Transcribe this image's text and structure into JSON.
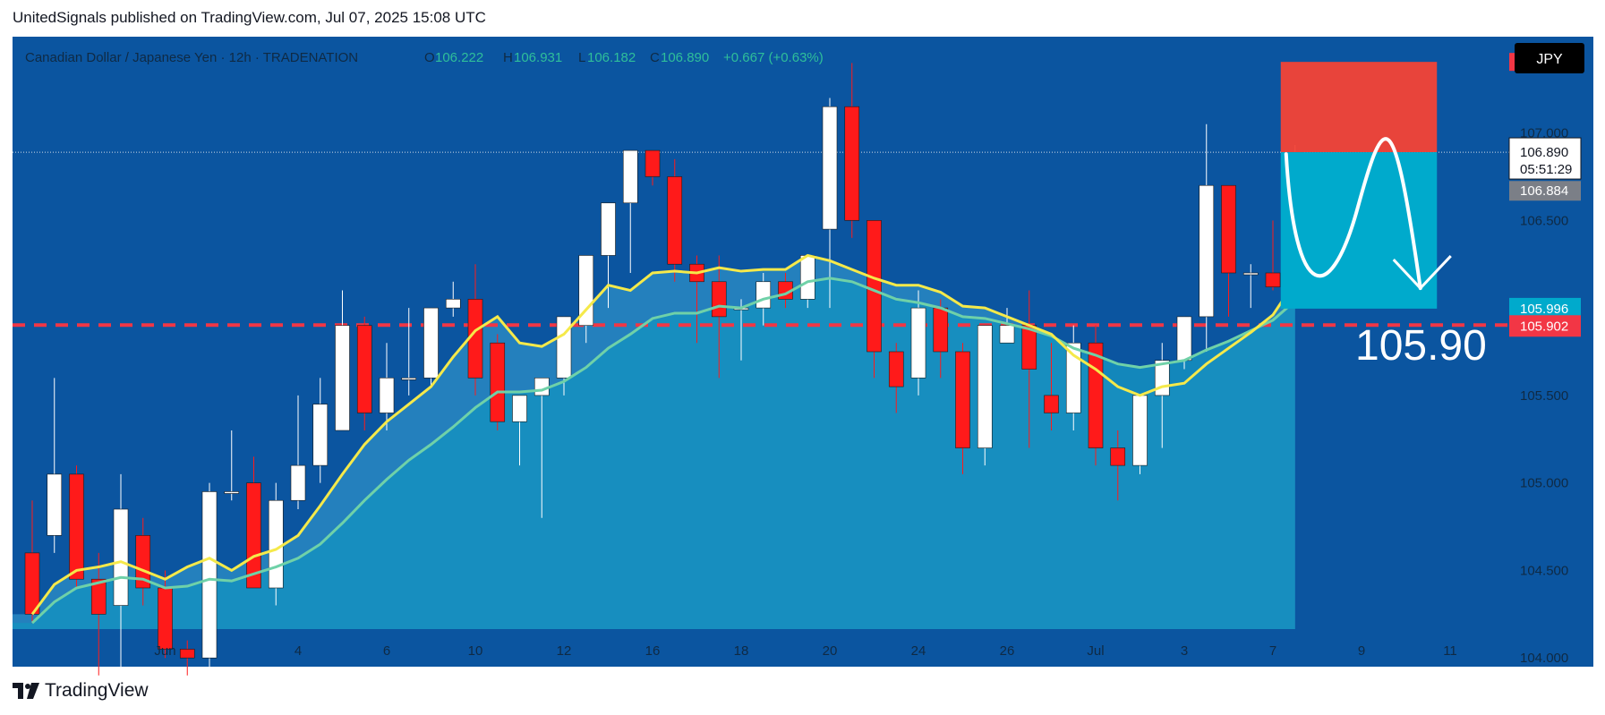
{
  "header": {
    "published": "UnitedSignals published on TradingView.com, Jul 07, 2025 15:08 UTC"
  },
  "footer": {
    "brand": "TradingView"
  },
  "chart_data": {
    "type": "candlestick",
    "symbol_line": "Canadian Dollar / Japanese Yen · 12h · TRADENATION",
    "ohlc": {
      "o_label": "O",
      "o_value": "106.222",
      "h_label": "H",
      "h_value": "106.931",
      "l_label": "L",
      "l_value": "106.182",
      "c_label": "C",
      "c_value": "106.890",
      "change": "+0.667 (+0.63%)"
    },
    "currency_button": "JPY",
    "y_ticks": [
      "104.000",
      "104.500",
      "105.000",
      "105.500",
      "106.500",
      "107.000"
    ],
    "x_ticks": [
      {
        "label": "Jun",
        "i": 6
      },
      {
        "label": "4",
        "i": 12
      },
      {
        "label": "6",
        "i": 16
      },
      {
        "label": "10",
        "i": 20
      },
      {
        "label": "12",
        "i": 24
      },
      {
        "label": "16",
        "i": 28
      },
      {
        "label": "18",
        "i": 32
      },
      {
        "label": "20",
        "i": 36
      },
      {
        "label": "24",
        "i": 40
      },
      {
        "label": "26",
        "i": 44
      },
      {
        "label": "Jul",
        "i": 48
      },
      {
        "label": "3",
        "i": 52
      },
      {
        "label": "7",
        "i": 56
      },
      {
        "label": "9",
        "i": 60
      },
      {
        "label": "11",
        "i": 64
      }
    ],
    "y_range": [
      103.95,
      107.55
    ],
    "price_labels": {
      "stop": "107.406",
      "current": "106.890",
      "countdown": "05:51:29",
      "prev": "106.884",
      "entry": "105.996",
      "target": "105.902"
    },
    "annotation": "105.90",
    "levels": {
      "stop": 107.406,
      "current": 106.89,
      "prev": 106.884,
      "entry": 105.996,
      "target": 105.902
    },
    "position": {
      "start_index": 57,
      "end_index": 63
    },
    "candles": [
      [
        104.6,
        104.9,
        104.2,
        104.25
      ],
      [
        104.7,
        105.6,
        104.6,
        105.05
      ],
      [
        105.05,
        105.1,
        104.4,
        104.45
      ],
      [
        104.45,
        104.6,
        103.9,
        104.25
      ],
      [
        104.3,
        105.05,
        103.9,
        104.85
      ],
      [
        104.7,
        104.8,
        104.3,
        104.4
      ],
      [
        104.4,
        104.5,
        104.0,
        104.05
      ],
      [
        104.05,
        104.1,
        103.9,
        104.0
      ],
      [
        104.0,
        105.0,
        103.95,
        104.95
      ],
      [
        104.95,
        105.3,
        104.9,
        104.95
      ],
      [
        105.0,
        105.15,
        104.4,
        104.4
      ],
      [
        104.4,
        105.0,
        104.3,
        104.9
      ],
      [
        104.9,
        105.5,
        104.85,
        105.1
      ],
      [
        105.1,
        105.6,
        105.0,
        105.45
      ],
      [
        105.3,
        106.1,
        105.3,
        105.9
      ],
      [
        105.9,
        105.95,
        105.3,
        105.4
      ],
      [
        105.4,
        105.8,
        105.3,
        105.6
      ],
      [
        105.6,
        106.0,
        105.5,
        105.6
      ],
      [
        105.6,
        106.0,
        105.55,
        106.0
      ],
      [
        106.0,
        106.15,
        105.95,
        106.05
      ],
      [
        106.05,
        106.25,
        105.5,
        105.6
      ],
      [
        105.8,
        105.85,
        105.3,
        105.35
      ],
      [
        105.35,
        105.5,
        105.1,
        105.5
      ],
      [
        105.5,
        105.6,
        104.8,
        105.6
      ],
      [
        105.6,
        105.95,
        105.5,
        105.95
      ],
      [
        105.9,
        106.3,
        105.8,
        106.3
      ],
      [
        106.3,
        106.6,
        106.0,
        106.6
      ],
      [
        106.6,
        106.9,
        106.2,
        106.9
      ],
      [
        106.9,
        106.9,
        106.7,
        106.75
      ],
      [
        106.75,
        106.85,
        106.15,
        106.25
      ],
      [
        106.25,
        106.3,
        105.8,
        106.15
      ],
      [
        106.15,
        106.3,
        105.6,
        105.95
      ],
      [
        106.0,
        106.05,
        105.7,
        106.0
      ],
      [
        106.0,
        106.2,
        105.9,
        106.15
      ],
      [
        106.15,
        106.2,
        106.0,
        106.05
      ],
      [
        106.05,
        106.3,
        106.0,
        106.3
      ],
      [
        106.45,
        107.2,
        106.0,
        107.15
      ],
      [
        107.15,
        107.4,
        106.4,
        106.5
      ],
      [
        106.5,
        106.5,
        105.6,
        105.75
      ],
      [
        105.75,
        105.8,
        105.4,
        105.55
      ],
      [
        105.6,
        106.1,
        105.5,
        106.0
      ],
      [
        106.0,
        106.05,
        105.6,
        105.75
      ],
      [
        105.75,
        105.8,
        105.05,
        105.2
      ],
      [
        105.2,
        105.9,
        105.1,
        105.9
      ],
      [
        105.8,
        106.0,
        105.8,
        105.9
      ],
      [
        105.9,
        106.1,
        105.2,
        105.65
      ],
      [
        105.5,
        105.8,
        105.3,
        105.4
      ],
      [
        105.4,
        105.9,
        105.3,
        105.8
      ],
      [
        105.8,
        105.9,
        105.1,
        105.2
      ],
      [
        105.2,
        105.3,
        104.9,
        105.1
      ],
      [
        105.1,
        105.5,
        105.05,
        105.5
      ],
      [
        105.5,
        105.8,
        105.2,
        105.7
      ],
      [
        105.7,
        105.95,
        105.65,
        105.95
      ],
      [
        105.95,
        107.05,
        105.75,
        106.7
      ],
      [
        106.7,
        106.7,
        105.95,
        106.2
      ],
      [
        106.2,
        106.25,
        106.0,
        106.2
      ],
      [
        106.2,
        106.5,
        106.1,
        106.12
      ],
      [
        106.222,
        106.931,
        106.182,
        106.89
      ]
    ],
    "ema_fast": [
      104.25,
      104.42,
      104.5,
      104.52,
      104.55,
      104.5,
      104.45,
      104.52,
      104.57,
      104.5,
      104.58,
      104.62,
      104.7,
      104.87,
      105.05,
      105.22,
      105.35,
      105.45,
      105.55,
      105.72,
      105.87,
      105.95,
      105.8,
      105.78,
      105.85,
      105.99,
      106.13,
      106.1,
      106.2,
      106.21,
      106.2,
      106.23,
      106.21,
      106.22,
      106.22,
      106.3,
      106.27,
      106.22,
      106.17,
      106.13,
      106.13,
      106.09,
      106.01,
      106.0,
      105.95,
      105.9,
      105.85,
      105.73,
      105.65,
      105.55,
      105.5,
      105.55,
      105.57,
      105.68,
      105.77,
      105.86,
      105.96,
      106.15
    ],
    "ema_slow": [
      104.2,
      104.32,
      104.4,
      104.43,
      104.46,
      104.45,
      104.4,
      104.41,
      104.45,
      104.44,
      104.48,
      104.52,
      104.57,
      104.65,
      104.77,
      104.9,
      105.02,
      105.13,
      105.22,
      105.32,
      105.43,
      105.52,
      105.52,
      105.53,
      105.58,
      105.66,
      105.77,
      105.85,
      105.94,
      105.97,
      105.97,
      106.01,
      106.0,
      106.05,
      106.08,
      106.15,
      106.17,
      106.15,
      106.1,
      106.05,
      106.03,
      106.0,
      105.95,
      105.94,
      105.91,
      105.88,
      105.84,
      105.77,
      105.73,
      105.68,
      105.66,
      105.68,
      105.7,
      105.76,
      105.81,
      105.87,
      105.93,
      106.04
    ]
  }
}
